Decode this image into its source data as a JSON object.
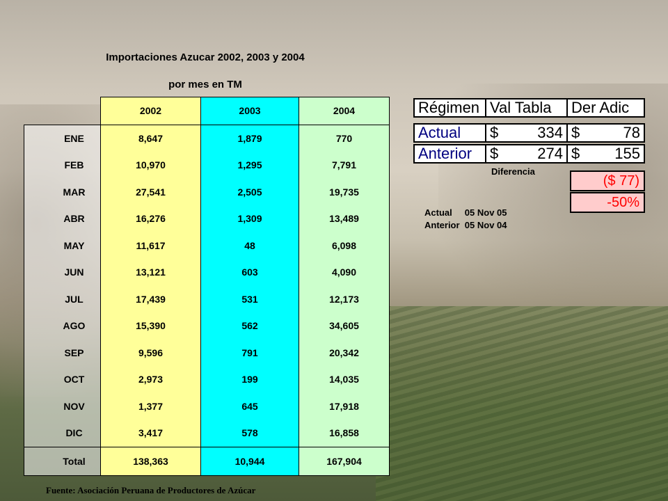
{
  "title": "Importaciones Azucar 2002, 2003 y 2004",
  "subtitle": "por mes en TM",
  "table": {
    "columns": [
      "2002",
      "2003",
      "2004"
    ],
    "rows": [
      {
        "month": "ENE",
        "values": [
          "8,647",
          "1,879",
          "770"
        ]
      },
      {
        "month": "FEB",
        "values": [
          "10,970",
          "1,295",
          "7,791"
        ]
      },
      {
        "month": "MAR",
        "values": [
          "27,541",
          "2,505",
          "19,735"
        ]
      },
      {
        "month": "ABR",
        "values": [
          "16,276",
          "1,309",
          "13,489"
        ]
      },
      {
        "month": "MAY",
        "values": [
          "11,617",
          "48",
          "6,098"
        ]
      },
      {
        "month": "JUN",
        "values": [
          "13,121",
          "603",
          "4,090"
        ]
      },
      {
        "month": "JUL",
        "values": [
          "17,439",
          "531",
          "12,173"
        ]
      },
      {
        "month": "AGO",
        "values": [
          "15,390",
          "562",
          "34,605"
        ]
      },
      {
        "month": "SEP",
        "values": [
          "9,596",
          "791",
          "20,342"
        ]
      },
      {
        "month": "OCT",
        "values": [
          "2,973",
          "199",
          "14,035"
        ]
      },
      {
        "month": "NOV",
        "values": [
          "1,377",
          "645",
          "17,918"
        ]
      },
      {
        "month": "DIC",
        "values": [
          "3,417",
          "578",
          "16,858"
        ]
      }
    ],
    "total": {
      "label": "Total",
      "values": [
        "138,363",
        "10,944",
        "167,904"
      ]
    }
  },
  "source": "Fuente: Asociación Peruana de Productores de Azúcar",
  "regimen": {
    "headers": [
      "Régimen",
      "Val Tabla",
      "Der Adic"
    ],
    "rows": [
      {
        "label": "Actual",
        "val_tabla": "334",
        "der_adic": "78"
      },
      {
        "label": "Anterior",
        "val_tabla": "274",
        "der_adic": "155"
      }
    ],
    "currency": "$",
    "diferencia_label": "Diferencia",
    "diferencia_money": "($ 77)",
    "diferencia_pct": "-50%",
    "dates": {
      "actual_label": "Actual",
      "actual_date": "05 Nov 05",
      "anterior_label": "Anterior",
      "anterior_date": "05 Nov 04"
    }
  },
  "colors": {
    "col_2002": "#ffff99",
    "col_2003": "#00ffff",
    "col_2004": "#ccffcc",
    "regimen_label": "#000080",
    "diferencia_text": "#ff0000",
    "diferencia_bg": "#ffcccc"
  }
}
